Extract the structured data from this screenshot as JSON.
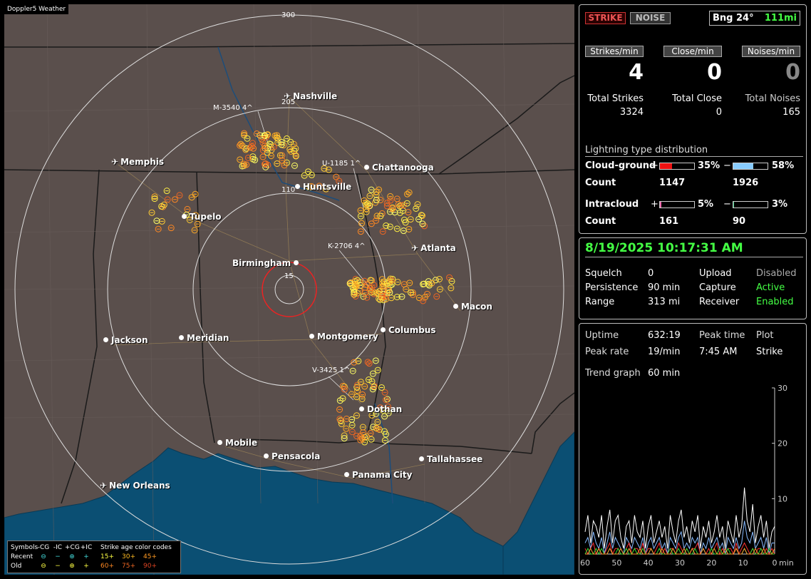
{
  "app": {
    "title": "Doppler5 Weather"
  },
  "map": {
    "ring_labels": [
      "300",
      "205",
      "110",
      "15"
    ],
    "cities": [
      {
        "name": "Nashville",
        "airport": true
      },
      {
        "name": "Memphis",
        "airport": true
      },
      {
        "name": "Chattanooga",
        "airport": false
      },
      {
        "name": "Huntsville",
        "airport": false
      },
      {
        "name": "Tupelo",
        "airport": false
      },
      {
        "name": "Atlanta",
        "airport": true
      },
      {
        "name": "Birmingham",
        "airport": false
      },
      {
        "name": "Macon",
        "airport": false
      },
      {
        "name": "Jackson",
        "airport": false
      },
      {
        "name": "Meridian",
        "airport": false
      },
      {
        "name": "Montgomery",
        "airport": false
      },
      {
        "name": "Columbus",
        "airport": false
      },
      {
        "name": "Dothan",
        "airport": false
      },
      {
        "name": "Mobile",
        "airport": false
      },
      {
        "name": "Pensacola",
        "airport": false
      },
      {
        "name": "Tallahassee",
        "airport": false
      },
      {
        "name": "Panama City",
        "airport": false
      },
      {
        "name": "New Orleans",
        "airport": true
      }
    ],
    "storm_labels": [
      "M-3540 4^",
      "U-1185 1^",
      "K-2706 4^",
      "V-3425 1^"
    ],
    "legend": {
      "symbols_label": "Symbols",
      "cols": [
        "-CG",
        "-IC",
        "+CG",
        "+IC"
      ],
      "recent_label": "Recent",
      "old_label": "Old",
      "recent_syms": [
        "⊖",
        "−",
        "⊕",
        "+"
      ],
      "old_syms": [
        "⊖",
        "−",
        "⊕",
        "+"
      ],
      "age_title": "Strike age color codes",
      "age_recent": [
        "15+",
        "30+",
        "45+"
      ],
      "age_old": [
        "60+",
        "75+",
        "90+"
      ]
    }
  },
  "panel": {
    "strike_button": "STRIKE",
    "noise_button": "NOISE",
    "bearing": "Bng 24°",
    "distance": "111mi",
    "strikes_per_min_label": "Strikes/min",
    "close_per_min_label": "Close/min",
    "noises_per_min_label": "Noises/min",
    "strikes_per_min": "4",
    "close_per_min": "0",
    "noises_per_min": "0",
    "total_strikes_label": "Total Strikes",
    "total_close_label": "Total Close",
    "total_noises_label": "Total Noises",
    "total_strikes": "3324",
    "total_close": "0",
    "total_noises": "165",
    "distribution_title": "Lightning type distribution",
    "cg_label": "Cloud-ground",
    "ic_label": "Intracloud",
    "count_label": "Count",
    "plus": "+",
    "minus": "−",
    "cg_pos_pct": "35%",
    "cg_neg_pct": "58%",
    "cg_pos_count": "1147",
    "cg_neg_count": "1926",
    "ic_pos_pct": "5%",
    "ic_neg_pct": "3%",
    "ic_pos_count": "161",
    "ic_neg_count": "90",
    "cg_pos_frac": 0.35,
    "cg_neg_frac": 0.58,
    "ic_pos_frac": 0.05,
    "ic_neg_frac": 0.03
  },
  "status": {
    "datetime": "8/19/2025 10:17:31 AM",
    "squelch_label": "Squelch",
    "squelch": "0",
    "persistence_label": "Persistence",
    "persistence": "90 min",
    "range_label": "Range",
    "range": "313 mi",
    "upload_label": "Upload",
    "upload": "Disabled",
    "capture_label": "Capture",
    "capture": "Active",
    "receiver_label": "Receiver",
    "receiver": "Enabled"
  },
  "stats": {
    "uptime_label": "Uptime",
    "uptime": "632:19",
    "peak_time_label": "Peak time",
    "peak_time": "7:45 AM",
    "plot_label": "Plot",
    "plot": "Strike",
    "peak_rate_label": "Peak rate",
    "peak_rate": "19/min",
    "trend_label": "Trend graph",
    "trend": "60 min"
  },
  "chart_data": {
    "type": "line",
    "xlabel": "min",
    "x_ticks": [
      "60",
      "50",
      "40",
      "30",
      "20",
      "10",
      "0"
    ],
    "y_ticks": [
      "30",
      "20",
      "10"
    ],
    "xlim": [
      60,
      0
    ],
    "ylim": [
      0,
      30
    ],
    "series": [
      {
        "color": "#ffffff",
        "values": [
          4,
          7,
          2,
          6,
          5,
          3,
          7,
          1,
          5,
          8,
          2,
          6,
          7,
          3,
          1,
          5,
          6,
          2,
          7,
          4,
          3,
          6,
          1,
          5,
          7,
          2,
          4,
          6,
          3,
          5,
          1,
          7,
          4,
          2,
          6,
          8,
          3,
          5,
          2,
          6,
          4,
          7,
          1,
          5,
          3,
          6,
          2,
          4,
          7,
          3,
          5,
          1,
          6,
          4,
          2,
          7,
          3,
          5,
          12,
          6,
          4,
          9,
          2,
          5,
          7,
          3,
          6,
          1,
          4,
          5
        ]
      },
      {
        "color": "#88bbff",
        "values": [
          2,
          3,
          1,
          4,
          2,
          1,
          3,
          0,
          2,
          4,
          1,
          3,
          2,
          1,
          0,
          3,
          2,
          1,
          3,
          2,
          1,
          3,
          0,
          2,
          3,
          1,
          2,
          3,
          1,
          2,
          0,
          3,
          2,
          1,
          3,
          4,
          1,
          2,
          1,
          3,
          2,
          3,
          0,
          2,
          1,
          3,
          1,
          2,
          3,
          1,
          2,
          0,
          3,
          2,
          1,
          3,
          1,
          2,
          6,
          3,
          2,
          4,
          1,
          2,
          3,
          1,
          3,
          0,
          2,
          2
        ]
      },
      {
        "color": "#ff3333",
        "values": [
          1,
          0,
          1,
          2,
          0,
          1,
          0,
          0,
          1,
          2,
          0,
          1,
          1,
          0,
          0,
          1,
          2,
          0,
          1,
          1,
          0,
          2,
          0,
          1,
          1,
          0,
          1,
          2,
          0,
          1,
          0,
          1,
          1,
          0,
          2,
          1,
          0,
          1,
          0,
          1,
          1,
          2,
          0,
          1,
          0,
          1,
          0,
          1,
          2,
          0,
          1,
          0,
          1,
          1,
          0,
          2,
          0,
          1,
          2,
          1,
          0,
          1,
          0,
          1,
          1,
          0,
          1,
          0,
          1,
          0
        ]
      },
      {
        "color": "#33dd33",
        "values": [
          0,
          1,
          0,
          0,
          1,
          0,
          1,
          0,
          0,
          1,
          0,
          0,
          1,
          0,
          0,
          1,
          0,
          0,
          1,
          0,
          0,
          1,
          0,
          0,
          1,
          0,
          0,
          1,
          0,
          0,
          0,
          1,
          0,
          0,
          1,
          0,
          0,
          1,
          0,
          0,
          1,
          0,
          0,
          1,
          0,
          0,
          1,
          0,
          0,
          1,
          0,
          0,
          1,
          0,
          0,
          1,
          0,
          0,
          1,
          0,
          0,
          1,
          0,
          0,
          1,
          0,
          0,
          1,
          0,
          0
        ]
      },
      {
        "color": "#ff9933",
        "values": [
          0,
          0,
          1,
          0,
          0,
          1,
          0,
          0,
          0,
          1,
          0,
          0,
          0,
          1,
          0,
          0,
          1,
          0,
          0,
          0,
          1,
          0,
          0,
          0,
          1,
          0,
          0,
          0,
          1,
          0,
          0,
          0,
          1,
          0,
          0,
          0,
          1,
          0,
          0,
          1,
          0,
          0,
          0,
          1,
          0,
          0,
          0,
          1,
          0,
          0,
          0,
          1,
          0,
          0,
          0,
          1,
          0,
          0,
          1,
          0,
          0,
          0,
          1,
          0,
          0,
          1,
          0,
          0,
          0,
          1
        ]
      }
    ]
  }
}
